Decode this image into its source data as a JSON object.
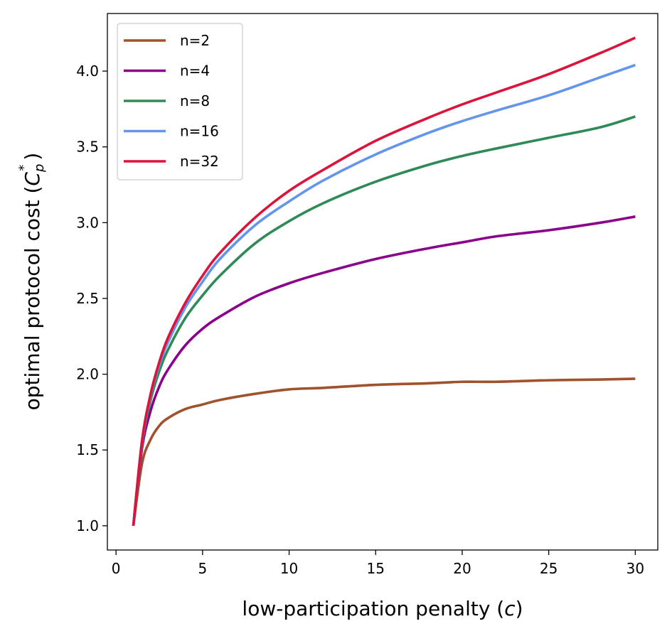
{
  "chart_data": {
    "type": "line",
    "title": "",
    "xlabel": {
      "text": "low-participation penalty (",
      "var": "c",
      "close": ")"
    },
    "ylabel": {
      "text": "optimal protocol cost (",
      "var": "C",
      "sub": "p",
      "sup": "*",
      "close": ")"
    },
    "xlim": [
      -0.5,
      31.3
    ],
    "ylim": [
      0.84,
      4.38
    ],
    "x_ticks": [
      0,
      5,
      10,
      15,
      20,
      25,
      30
    ],
    "x_tick_labels": [
      "0",
      "5",
      "10",
      "15",
      "20",
      "25",
      "30"
    ],
    "y_ticks": [
      1.0,
      1.5,
      2.0,
      2.5,
      3.0,
      3.5,
      4.0
    ],
    "y_tick_labels": [
      "1.0",
      "1.5",
      "2.0",
      "2.5",
      "3.0",
      "3.5",
      "4.0"
    ],
    "grid": false,
    "legend_position": "upper-left",
    "x": [
      1,
      1.5,
      2,
      2.5,
      3,
      4,
      5,
      6,
      8,
      10,
      12,
      15,
      18,
      20,
      22,
      25,
      28,
      30
    ],
    "series": [
      {
        "name": "n=2",
        "color": "#A0522D",
        "values": [
          1.0,
          1.41,
          1.57,
          1.66,
          1.71,
          1.77,
          1.8,
          1.83,
          1.87,
          1.9,
          1.91,
          1.93,
          1.94,
          1.95,
          1.95,
          1.96,
          1.965,
          1.97
        ]
      },
      {
        "name": "n=4",
        "color": "#8B008B",
        "values": [
          1.0,
          1.51,
          1.76,
          1.92,
          2.03,
          2.19,
          2.3,
          2.38,
          2.51,
          2.6,
          2.67,
          2.76,
          2.83,
          2.87,
          2.91,
          2.95,
          3.0,
          3.04
        ]
      },
      {
        "name": "n=8",
        "color": "#2E8B57",
        "values": [
          1.0,
          1.54,
          1.83,
          2.02,
          2.16,
          2.37,
          2.52,
          2.65,
          2.86,
          3.01,
          3.13,
          3.27,
          3.38,
          3.44,
          3.49,
          3.56,
          3.63,
          3.7
        ]
      },
      {
        "name": "n=16",
        "color": "#6495ED",
        "values": [
          1.0,
          1.55,
          1.86,
          2.06,
          2.21,
          2.44,
          2.61,
          2.76,
          2.98,
          3.14,
          3.28,
          3.45,
          3.59,
          3.67,
          3.74,
          3.84,
          3.96,
          4.04
        ]
      },
      {
        "name": "n=32",
        "color": "#DC143C",
        "values": [
          1.0,
          1.56,
          1.87,
          2.08,
          2.24,
          2.47,
          2.65,
          2.8,
          3.03,
          3.21,
          3.35,
          3.54,
          3.69,
          3.78,
          3.86,
          3.98,
          4.12,
          4.22
        ]
      }
    ]
  }
}
